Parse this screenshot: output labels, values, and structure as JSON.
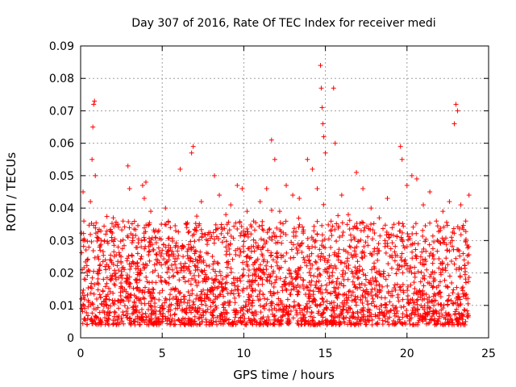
{
  "chart_data": {
    "type": "scatter",
    "title": "Day 307 of 2016, Rate Of TEC Index for receiver medi",
    "xlabel": "GPS time / hours",
    "ylabel": "ROTI / TECUs",
    "xlim": [
      0,
      25
    ],
    "ylim": [
      0,
      0.09
    ],
    "xticks": [
      0,
      5,
      10,
      15,
      20,
      25
    ],
    "yticks": [
      0,
      0.01,
      0.02,
      0.03,
      0.04,
      0.05,
      0.06,
      0.07,
      0.08,
      0.09
    ],
    "xtick_labels": [
      "0",
      "5",
      "10",
      "15",
      "20",
      "25"
    ],
    "ytick_labels": [
      "0",
      "0.01",
      "0.02",
      "0.03",
      "0.04",
      "0.05",
      "0.06",
      "0.07",
      "0.08",
      "0.09"
    ],
    "grid": true,
    "marker": "+",
    "color": "#ff0000",
    "series": [
      {
        "name": "ROTI",
        "points": [
          [
            0.05,
            0.012
          ],
          [
            0.1,
            0.021
          ],
          [
            0.15,
            0.045
          ],
          [
            0.2,
            0.036
          ],
          [
            0.25,
            0.03
          ],
          [
            0.3,
            0.018
          ],
          [
            0.4,
            0.024
          ],
          [
            0.5,
            0.011
          ],
          [
            0.6,
            0.042
          ],
          [
            0.7,
            0.055
          ],
          [
            0.75,
            0.065
          ],
          [
            0.8,
            0.072
          ],
          [
            0.85,
            0.073
          ],
          [
            0.9,
            0.05
          ],
          [
            1.0,
            0.031
          ],
          [
            1.2,
            0.027
          ],
          [
            1.5,
            0.022
          ],
          [
            1.8,
            0.033
          ],
          [
            2.0,
            0.037
          ],
          [
            2.3,
            0.028
          ],
          [
            2.6,
            0.036
          ],
          [
            2.9,
            0.053
          ],
          [
            3.0,
            0.046
          ],
          [
            3.2,
            0.03
          ],
          [
            3.5,
            0.026
          ],
          [
            3.8,
            0.047
          ],
          [
            3.9,
            0.043
          ],
          [
            4.0,
            0.048
          ],
          [
            4.3,
            0.039
          ],
          [
            4.6,
            0.031
          ],
          [
            5.0,
            0.027
          ],
          [
            5.2,
            0.04
          ],
          [
            5.5,
            0.034
          ],
          [
            5.8,
            0.028
          ],
          [
            6.1,
            0.052
          ],
          [
            6.5,
            0.035
          ],
          [
            6.8,
            0.057
          ],
          [
            6.9,
            0.059
          ],
          [
            7.1,
            0.033
          ],
          [
            7.4,
            0.042
          ],
          [
            7.8,
            0.03
          ],
          [
            8.2,
            0.05
          ],
          [
            8.5,
            0.044
          ],
          [
            8.9,
            0.038
          ],
          [
            9.2,
            0.041
          ],
          [
            9.6,
            0.047
          ],
          [
            9.9,
            0.046
          ],
          [
            10.2,
            0.039
          ],
          [
            10.6,
            0.036
          ],
          [
            11.0,
            0.042
          ],
          [
            11.4,
            0.046
          ],
          [
            11.7,
            0.061
          ],
          [
            11.9,
            0.055
          ],
          [
            12.2,
            0.039
          ],
          [
            12.6,
            0.047
          ],
          [
            13.0,
            0.044
          ],
          [
            13.4,
            0.043
          ],
          [
            13.9,
            0.055
          ],
          [
            14.2,
            0.052
          ],
          [
            14.5,
            0.046
          ],
          [
            14.7,
            0.084
          ],
          [
            14.75,
            0.077
          ],
          [
            14.8,
            0.071
          ],
          [
            14.85,
            0.066
          ],
          [
            14.9,
            0.062
          ],
          [
            15.0,
            0.057
          ],
          [
            15.5,
            0.077
          ],
          [
            15.6,
            0.06
          ],
          [
            16.0,
            0.044
          ],
          [
            16.4,
            0.038
          ],
          [
            16.9,
            0.051
          ],
          [
            17.3,
            0.046
          ],
          [
            17.8,
            0.04
          ],
          [
            18.3,
            0.037
          ],
          [
            18.8,
            0.043
          ],
          [
            19.2,
            0.035
          ],
          [
            19.6,
            0.059
          ],
          [
            19.7,
            0.055
          ],
          [
            20.0,
            0.047
          ],
          [
            20.3,
            0.05
          ],
          [
            20.6,
            0.049
          ],
          [
            21.0,
            0.041
          ],
          [
            21.4,
            0.045
          ],
          [
            21.8,
            0.036
          ],
          [
            22.2,
            0.039
          ],
          [
            22.6,
            0.042
          ],
          [
            22.9,
            0.066
          ],
          [
            23.0,
            0.072
          ],
          [
            23.1,
            0.07
          ],
          [
            23.3,
            0.041
          ],
          [
            23.6,
            0.036
          ],
          [
            23.8,
            0.044
          ]
        ]
      }
    ]
  }
}
